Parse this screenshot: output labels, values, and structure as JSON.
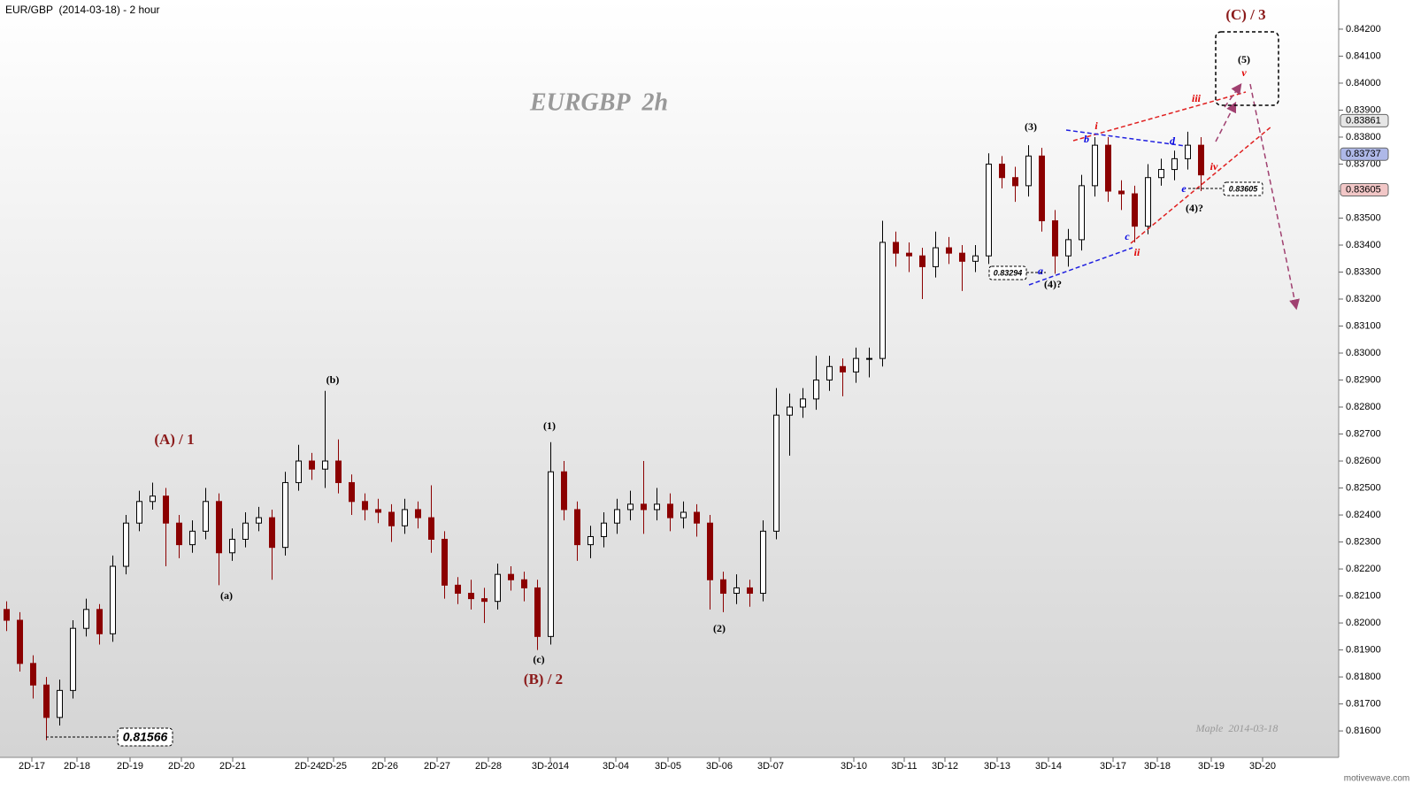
{
  "header": "EUR/GBP  (2014-03-18) - 2 hour",
  "watermark": "motivewave.com",
  "chart_data": {
    "type": "candlestick",
    "title": "EURGBP  2h",
    "subtitle": "Maple  2014-03-18",
    "up_color": "#000000",
    "down_color": "#8b0000",
    "date_labels": [
      "2D-17",
      "2D-18",
      "2D-19",
      "2D-20",
      "2D-21",
      "2D-24",
      "2D-25",
      "2D-26",
      "2D-27",
      "2D-28",
      "3D-2014",
      "3D-04",
      "3D-05",
      "3D-06",
      "3D-07",
      "3D-10",
      "3D-11",
      "3D-12",
      "3D-13",
      "3D-14",
      "3D-17",
      "3D-18",
      "3D-19",
      "3D-20"
    ],
    "ohlc": [
      [
        0.8205,
        0.8208,
        0.8197,
        0.8201
      ],
      [
        0.8201,
        0.8204,
        0.8182,
        0.8185
      ],
      [
        0.8185,
        0.8188,
        0.8172,
        0.8177
      ],
      [
        0.8177,
        0.818,
        0.81566,
        0.8165
      ],
      [
        0.8165,
        0.8179,
        0.8162,
        0.8175
      ],
      [
        0.8175,
        0.8201,
        0.8172,
        0.8198
      ],
      [
        0.8198,
        0.8209,
        0.8195,
        0.8205
      ],
      [
        0.8205,
        0.8207,
        0.8192,
        0.8196
      ],
      [
        0.8196,
        0.8225,
        0.8193,
        0.8221
      ],
      [
        0.8221,
        0.824,
        0.8218,
        0.8237
      ],
      [
        0.8237,
        0.8249,
        0.8234,
        0.8245
      ],
      [
        0.8245,
        0.8252,
        0.8242,
        0.8247
      ],
      [
        0.8247,
        0.825,
        0.8221,
        0.8237
      ],
      [
        0.8237,
        0.824,
        0.8224,
        0.8229
      ],
      [
        0.8229,
        0.8238,
        0.8226,
        0.8234
      ],
      [
        0.8234,
        0.825,
        0.8231,
        0.8245
      ],
      [
        0.8245,
        0.8248,
        0.8214,
        0.8226
      ],
      [
        0.8226,
        0.8235,
        0.8223,
        0.8231
      ],
      [
        0.8231,
        0.8241,
        0.8228,
        0.8237
      ],
      [
        0.8237,
        0.8243,
        0.8234,
        0.8239
      ],
      [
        0.8239,
        0.8242,
        0.8216,
        0.8228
      ],
      [
        0.8228,
        0.8256,
        0.8225,
        0.8252
      ],
      [
        0.8252,
        0.8266,
        0.8249,
        0.826
      ],
      [
        0.826,
        0.8263,
        0.8253,
        0.8257
      ],
      [
        0.8257,
        0.8286,
        0.825,
        0.826
      ],
      [
        0.826,
        0.8268,
        0.8248,
        0.8252
      ],
      [
        0.8252,
        0.8255,
        0.824,
        0.8245
      ],
      [
        0.8245,
        0.8248,
        0.8238,
        0.8242
      ],
      [
        0.8242,
        0.8246,
        0.8237,
        0.8241
      ],
      [
        0.8241,
        0.8244,
        0.823,
        0.8236
      ],
      [
        0.8236,
        0.8246,
        0.8233,
        0.8242
      ],
      [
        0.8242,
        0.8245,
        0.8235,
        0.8239
      ],
      [
        0.8239,
        0.8251,
        0.8226,
        0.8231
      ],
      [
        0.8231,
        0.8234,
        0.8209,
        0.8214
      ],
      [
        0.8214,
        0.8217,
        0.8207,
        0.8211
      ],
      [
        0.8211,
        0.8216,
        0.8205,
        0.8209
      ],
      [
        0.8209,
        0.8213,
        0.82,
        0.8208
      ],
      [
        0.8208,
        0.8222,
        0.8205,
        0.8218
      ],
      [
        0.8218,
        0.8221,
        0.8212,
        0.8216
      ],
      [
        0.8216,
        0.8219,
        0.8208,
        0.8213
      ],
      [
        0.8213,
        0.8216,
        0.819,
        0.8195
      ],
      [
        0.8195,
        0.8267,
        0.8192,
        0.8256
      ],
      [
        0.8256,
        0.826,
        0.8238,
        0.8242
      ],
      [
        0.8242,
        0.8245,
        0.8223,
        0.8229
      ],
      [
        0.8229,
        0.8236,
        0.8224,
        0.8232
      ],
      [
        0.8232,
        0.8241,
        0.8228,
        0.8237
      ],
      [
        0.8237,
        0.8246,
        0.8233,
        0.8242
      ],
      [
        0.8242,
        0.8249,
        0.8238,
        0.8244
      ],
      [
        0.8244,
        0.826,
        0.8233,
        0.8242
      ],
      [
        0.8242,
        0.825,
        0.8238,
        0.8244
      ],
      [
        0.8244,
        0.8248,
        0.8234,
        0.8239
      ],
      [
        0.8239,
        0.8245,
        0.8235,
        0.8241
      ],
      [
        0.8241,
        0.8244,
        0.8232,
        0.8237
      ],
      [
        0.8237,
        0.824,
        0.8205,
        0.8216
      ],
      [
        0.8216,
        0.8219,
        0.8204,
        0.8211
      ],
      [
        0.8211,
        0.8218,
        0.8207,
        0.8213
      ],
      [
        0.8213,
        0.8216,
        0.8206,
        0.8211
      ],
      [
        0.8211,
        0.8238,
        0.8208,
        0.8234
      ],
      [
        0.8234,
        0.8287,
        0.8231,
        0.8277
      ],
      [
        0.8277,
        0.8285,
        0.8262,
        0.828
      ],
      [
        0.828,
        0.8287,
        0.8276,
        0.8283
      ],
      [
        0.8283,
        0.8299,
        0.8279,
        0.829
      ],
      [
        0.829,
        0.8299,
        0.8286,
        0.8295
      ],
      [
        0.8295,
        0.8298,
        0.8284,
        0.8293
      ],
      [
        0.8293,
        0.8302,
        0.8289,
        0.8298
      ],
      [
        0.8298,
        0.8302,
        0.8291,
        0.8298
      ],
      [
        0.8298,
        0.8349,
        0.8295,
        0.8341
      ],
      [
        0.8341,
        0.8345,
        0.8332,
        0.8337
      ],
      [
        0.8337,
        0.8341,
        0.833,
        0.8336
      ],
      [
        0.8336,
        0.8339,
        0.832,
        0.8332
      ],
      [
        0.8332,
        0.8345,
        0.8328,
        0.8339
      ],
      [
        0.8339,
        0.8343,
        0.8333,
        0.8337
      ],
      [
        0.8337,
        0.834,
        0.8323,
        0.8334
      ],
      [
        0.8334,
        0.834,
        0.833,
        0.8336
      ],
      [
        0.8336,
        0.8374,
        0.8333,
        0.837
      ],
      [
        0.837,
        0.8373,
        0.8361,
        0.8365
      ],
      [
        0.8365,
        0.8369,
        0.8356,
        0.8362
      ],
      [
        0.8362,
        0.8377,
        0.8358,
        0.8373
      ],
      [
        0.8373,
        0.8376,
        0.8345,
        0.8349
      ],
      [
        0.8349,
        0.8353,
        0.83294,
        0.8336
      ],
      [
        0.8336,
        0.8346,
        0.8332,
        0.8342
      ],
      [
        0.8342,
        0.8366,
        0.8338,
        0.8362
      ],
      [
        0.8362,
        0.838,
        0.8358,
        0.8377
      ],
      [
        0.8377,
        0.838,
        0.8356,
        0.836
      ],
      [
        0.836,
        0.8364,
        0.8353,
        0.8359
      ],
      [
        0.8359,
        0.8362,
        0.8341,
        0.8347
      ],
      [
        0.8347,
        0.837,
        0.8344,
        0.8365
      ],
      [
        0.8365,
        0.8372,
        0.8362,
        0.8368
      ],
      [
        0.8368,
        0.8375,
        0.8364,
        0.8372
      ],
      [
        0.8372,
        0.8382,
        0.8368,
        0.8377
      ],
      [
        0.8377,
        0.838,
        0.836,
        0.8366
      ]
    ],
    "ylim": [
      0.81502,
      0.84308
    ],
    "yticks": [
      {
        "value": 0.816,
        "label": "0.81600"
      },
      {
        "value": 0.817,
        "label": "0.81700"
      },
      {
        "value": 0.818,
        "label": "0.81800"
      },
      {
        "value": 0.819,
        "label": "0.81900"
      },
      {
        "value": 0.82,
        "label": "0.82000"
      },
      {
        "value": 0.821,
        "label": "0.82100"
      },
      {
        "value": 0.822,
        "label": "0.82200"
      },
      {
        "value": 0.823,
        "label": "0.82300"
      },
      {
        "value": 0.824,
        "label": "0.82400"
      },
      {
        "value": 0.825,
        "label": "0.82500"
      },
      {
        "value": 0.826,
        "label": "0.82600"
      },
      {
        "value": 0.827,
        "label": "0.82700"
      },
      {
        "value": 0.828,
        "label": "0.82800"
      },
      {
        "value": 0.829,
        "label": "0.82900"
      },
      {
        "value": 0.83,
        "label": "0.83000"
      },
      {
        "value": 0.831,
        "label": "0.83100"
      },
      {
        "value": 0.832,
        "label": "0.83200"
      },
      {
        "value": 0.833,
        "label": "0.83300"
      },
      {
        "value": 0.834,
        "label": "0.83400"
      },
      {
        "value": 0.835,
        "label": "0.83500"
      },
      {
        "value": 0.836,
        "label": "0.83600"
      },
      {
        "value": 0.837,
        "label": "0.83700"
      },
      {
        "value": 0.838,
        "label": "0.83800"
      },
      {
        "value": 0.839,
        "label": "0.83900"
      },
      {
        "value": 0.84,
        "label": "0.84000"
      },
      {
        "value": 0.841,
        "label": "0.84100"
      },
      {
        "value": 0.842,
        "label": "0.84200"
      }
    ],
    "price_markers": [
      {
        "value": 0.83861,
        "color": "#e6e6e6"
      },
      {
        "value": 0.83737,
        "color": "#aeb8e8"
      },
      {
        "value": 0.83605,
        "color": "#f2c7c7"
      }
    ],
    "price_boxes": [
      0.81566,
      0.83294,
      0.83605
    ],
    "annotations": [
      "(A) / 1",
      "(b)",
      "(a)",
      "(1)",
      "(c)",
      "(B) / 2",
      "(2)",
      "(3)",
      "(4)?",
      "(4)?",
      "(5)",
      "(C) / 3",
      "i",
      "ii",
      "iii",
      "iv",
      "v",
      "a",
      "b",
      "c",
      "d",
      "e"
    ]
  }
}
